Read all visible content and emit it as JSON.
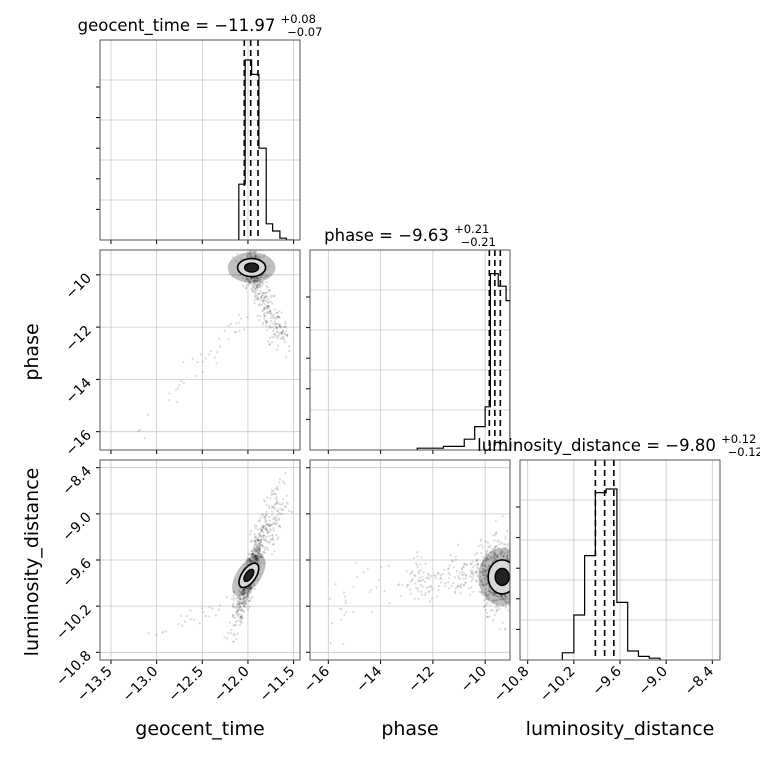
{
  "figure": {
    "type": "corner-plot",
    "parameters": [
      "geocent_time",
      "phase",
      "luminosity_distance"
    ]
  },
  "chart_data": [
    {
      "type": "histogram",
      "panel": "geocent_time-1d",
      "title_param": "geocent_time",
      "title_median": "−11.97",
      "title_plus": "+0.08",
      "title_minus": "−0.07",
      "median": -11.97,
      "quantiles": [
        -12.04,
        -11.97,
        -11.89
      ],
      "xlim": [
        -13.62,
        -11.43
      ],
      "xticks": [
        -13.5,
        -13.0,
        -12.5,
        -12.0,
        -11.5
      ],
      "xtick_labels": [
        "−13.5",
        "−13.0",
        "−12.5",
        "−12.0",
        "−11.5"
      ],
      "ylim": [
        0,
        1
      ],
      "bins": [
        -12.1,
        -12.03,
        -11.96,
        -11.88,
        -11.8,
        -11.73,
        -11.65,
        -11.58,
        -11.5
      ],
      "counts": [
        0.31,
        1.0,
        0.92,
        0.51,
        0.09,
        0.05,
        0.01,
        0.0
      ],
      "grid": true
    },
    {
      "type": "histogram",
      "panel": "phase-1d",
      "title_param": "phase",
      "title_median": "−9.63",
      "title_plus": "+0.21",
      "title_minus": "−0.21",
      "median": -9.63,
      "quantiles": [
        -9.84,
        -9.63,
        -9.42
      ],
      "xlim": [
        -16.7,
        -9.05
      ],
      "xticks": [
        -16,
        -14,
        -12,
        -10
      ],
      "xtick_labels": [
        "−16",
        "−14",
        "−12",
        "−10"
      ],
      "ylim": [
        0,
        1
      ],
      "bins": [
        -12.6,
        -11.6,
        -10.8,
        -10.4,
        -10.0,
        -9.8,
        -9.5,
        -9.2,
        -9.05
      ],
      "counts": [
        0.01,
        0.02,
        0.06,
        0.13,
        0.24,
        0.98,
        0.91,
        0.83
      ],
      "grid": true
    },
    {
      "type": "histogram",
      "panel": "luminosity_distance-1d",
      "title_param": "luminosity_distance",
      "title_median": "−9.80",
      "title_plus": "+0.12",
      "title_minus": "−0.12",
      "median": -9.8,
      "quantiles": [
        -9.92,
        -9.8,
        -9.68
      ],
      "xlim": [
        -10.9,
        -8.3
      ],
      "xticks": [
        -10.8,
        -10.2,
        -9.6,
        -9.0,
        -8.4
      ],
      "xtick_labels": [
        "−10.8",
        "−10.2",
        "−9.6",
        "−9.0",
        "−8.4"
      ],
      "ylim": [
        0,
        1
      ],
      "bins": [
        -10.35,
        -10.2,
        -10.06,
        -9.92,
        -9.78,
        -9.64,
        -9.5,
        -9.36,
        -9.22,
        -9.08
      ],
      "counts": [
        0.04,
        0.25,
        0.58,
        0.93,
        0.95,
        0.32,
        0.05,
        0.02,
        0.01
      ],
      "grid": true
    },
    {
      "type": "scatter",
      "panel": "geocent_time-phase-2d",
      "xlabel": "",
      "ylabel": "phase",
      "xlim": [
        -13.62,
        -11.43
      ],
      "ylim": [
        -16.7,
        -9.05
      ],
      "yticks": [
        -16,
        -14,
        -12,
        -10
      ],
      "ytick_labels": [
        "−16",
        "−14",
        "−12",
        "−10"
      ],
      "density_peak": [
        -11.96,
        -9.7
      ],
      "contour_levels": [
        "39.3%",
        "86.5%"
      ],
      "grid": true
    },
    {
      "type": "scatter",
      "panel": "geocent_time-luminosity_distance-2d",
      "xlabel": "geocent_time",
      "ylabel": "luminosity_distance",
      "xlim": [
        -13.62,
        -11.43
      ],
      "ylim": [
        -10.9,
        -8.3
      ],
      "xticks": [
        -13.5,
        -13.0,
        -12.5,
        -12.0,
        -11.5
      ],
      "xtick_labels": [
        "−13.5",
        "−13.0",
        "−12.5",
        "−12.0",
        "−11.5"
      ],
      "yticks": [
        -10.8,
        -10.2,
        -9.6,
        -9.0,
        -8.4
      ],
      "ytick_labels": [
        "−10.8",
        "−10.2",
        "−9.6",
        "−9.0",
        "−8.4"
      ],
      "density_peak": [
        -12.0,
        -9.85
      ],
      "grid": true
    },
    {
      "type": "scatter",
      "panel": "phase-luminosity_distance-2d",
      "xlabel": "phase",
      "ylabel": "",
      "xlim": [
        -16.7,
        -9.05
      ],
      "ylim": [
        -10.9,
        -8.3
      ],
      "xticks": [
        -16,
        -14,
        -12,
        -10
      ],
      "xtick_labels": [
        "−16",
        "−14",
        "−12",
        "−10"
      ],
      "density_peak": [
        -9.4,
        -9.85
      ],
      "grid": true
    }
  ]
}
